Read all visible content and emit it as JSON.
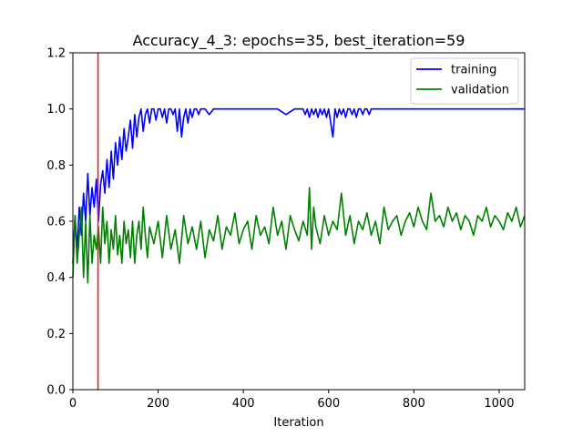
{
  "chart_data": {
    "type": "line",
    "title": "Accuracy_4_3: epochs=35, best_iteration=59",
    "xlabel": "Iteration",
    "ylabel": "",
    "xlim": [
      0,
      1060
    ],
    "ylim": [
      0.0,
      1.2
    ],
    "xticks": [
      0,
      200,
      400,
      600,
      800,
      1000
    ],
    "yticks": [
      0.0,
      0.2,
      0.4,
      0.6,
      0.8,
      1.0,
      1.2
    ],
    "grid": false,
    "legend_position": "top-right",
    "best_iteration_marker": {
      "x": 59,
      "color": "#d62728"
    },
    "series": [
      {
        "name": "training",
        "color": "#0000ff",
        "x": [
          0,
          5,
          10,
          15,
          20,
          25,
          30,
          35,
          40,
          45,
          50,
          55,
          60,
          65,
          70,
          75,
          80,
          85,
          90,
          95,
          100,
          105,
          110,
          115,
          120,
          125,
          130,
          135,
          140,
          145,
          150,
          155,
          160,
          165,
          170,
          175,
          180,
          185,
          190,
          195,
          200,
          205,
          210,
          215,
          220,
          225,
          230,
          235,
          240,
          245,
          250,
          255,
          260,
          265,
          270,
          275,
          280,
          285,
          290,
          295,
          300,
          310,
          320,
          330,
          340,
          350,
          360,
          380,
          400,
          420,
          440,
          460,
          480,
          500,
          520,
          540,
          545,
          550,
          555,
          560,
          565,
          570,
          575,
          580,
          585,
          590,
          595,
          600,
          605,
          610,
          615,
          620,
          625,
          630,
          635,
          640,
          645,
          650,
          655,
          660,
          665,
          670,
          675,
          680,
          685,
          690,
          695,
          700,
          710,
          720,
          740,
          760,
          780,
          800,
          820,
          840,
          860,
          880,
          900,
          920,
          940,
          960,
          980,
          1000,
          1020,
          1040,
          1060
        ],
        "values": [
          0.45,
          0.62,
          0.5,
          0.65,
          0.55,
          0.7,
          0.6,
          0.77,
          0.62,
          0.72,
          0.65,
          0.75,
          0.6,
          0.73,
          0.78,
          0.7,
          0.82,
          0.72,
          0.85,
          0.75,
          0.88,
          0.8,
          0.9,
          0.82,
          0.93,
          0.85,
          0.9,
          0.96,
          0.86,
          0.98,
          0.9,
          0.97,
          1.0,
          0.92,
          0.98,
          1.0,
          0.95,
          1.0,
          1.0,
          0.96,
          1.0,
          1.0,
          0.97,
          1.0,
          0.95,
          1.0,
          1.0,
          0.98,
          1.0,
          0.92,
          1.0,
          0.9,
          0.97,
          1.0,
          0.95,
          1.0,
          0.97,
          1.0,
          1.0,
          0.98,
          1.0,
          1.0,
          0.98,
          1.0,
          1.0,
          1.0,
          1.0,
          1.0,
          1.0,
          1.0,
          1.0,
          1.0,
          1.0,
          0.98,
          1.0,
          1.0,
          0.98,
          1.0,
          0.97,
          1.0,
          0.98,
          1.0,
          0.97,
          1.0,
          0.98,
          1.0,
          0.97,
          1.0,
          0.95,
          0.9,
          1.0,
          0.97,
          1.0,
          0.98,
          1.0,
          0.97,
          1.0,
          1.0,
          0.98,
          1.0,
          0.97,
          1.0,
          1.0,
          0.98,
          1.0,
          1.0,
          0.98,
          1.0,
          1.0,
          1.0,
          1.0,
          1.0,
          1.0,
          1.0,
          1.0,
          1.0,
          1.0,
          1.0,
          1.0,
          1.0,
          1.0,
          1.0,
          1.0,
          1.0,
          1.0,
          1.0,
          1.0
        ]
      },
      {
        "name": "validation",
        "color": "#008000",
        "x": [
          0,
          5,
          10,
          15,
          20,
          25,
          30,
          35,
          40,
          45,
          50,
          55,
          60,
          65,
          70,
          75,
          80,
          85,
          90,
          95,
          100,
          105,
          110,
          115,
          120,
          125,
          130,
          135,
          140,
          145,
          150,
          155,
          160,
          165,
          170,
          175,
          180,
          190,
          200,
          210,
          220,
          230,
          240,
          250,
          260,
          270,
          280,
          290,
          300,
          310,
          320,
          330,
          340,
          350,
          360,
          370,
          380,
          390,
          400,
          410,
          420,
          430,
          440,
          450,
          460,
          470,
          480,
          490,
          500,
          510,
          520,
          530,
          540,
          550,
          555,
          560,
          565,
          570,
          580,
          590,
          600,
          610,
          620,
          630,
          640,
          650,
          660,
          670,
          680,
          690,
          700,
          710,
          720,
          730,
          740,
          750,
          760,
          770,
          780,
          790,
          800,
          810,
          820,
          830,
          840,
          850,
          860,
          870,
          880,
          890,
          900,
          910,
          920,
          930,
          940,
          950,
          960,
          970,
          980,
          990,
          1000,
          1010,
          1020,
          1030,
          1040,
          1050,
          1060
        ],
        "values": [
          0.4,
          0.62,
          0.45,
          0.55,
          0.65,
          0.4,
          0.6,
          0.38,
          0.62,
          0.45,
          0.55,
          0.5,
          0.58,
          0.45,
          0.65,
          0.52,
          0.6,
          0.45,
          0.57,
          0.5,
          0.62,
          0.48,
          0.55,
          0.45,
          0.6,
          0.52,
          0.57,
          0.47,
          0.6,
          0.45,
          0.55,
          0.6,
          0.5,
          0.65,
          0.55,
          0.47,
          0.58,
          0.52,
          0.6,
          0.47,
          0.62,
          0.5,
          0.57,
          0.45,
          0.62,
          0.52,
          0.58,
          0.5,
          0.6,
          0.47,
          0.57,
          0.53,
          0.62,
          0.5,
          0.58,
          0.55,
          0.63,
          0.52,
          0.57,
          0.6,
          0.5,
          0.62,
          0.55,
          0.58,
          0.52,
          0.65,
          0.55,
          0.6,
          0.5,
          0.62,
          0.57,
          0.53,
          0.6,
          0.55,
          0.72,
          0.5,
          0.65,
          0.58,
          0.52,
          0.62,
          0.55,
          0.6,
          0.57,
          0.7,
          0.55,
          0.62,
          0.52,
          0.6,
          0.57,
          0.63,
          0.55,
          0.6,
          0.52,
          0.65,
          0.57,
          0.6,
          0.62,
          0.55,
          0.6,
          0.63,
          0.58,
          0.65,
          0.6,
          0.57,
          0.7,
          0.6,
          0.62,
          0.58,
          0.65,
          0.6,
          0.63,
          0.57,
          0.62,
          0.6,
          0.55,
          0.62,
          0.6,
          0.65,
          0.58,
          0.62,
          0.6,
          0.57,
          0.63,
          0.6,
          0.65,
          0.58,
          0.62
        ]
      }
    ]
  }
}
